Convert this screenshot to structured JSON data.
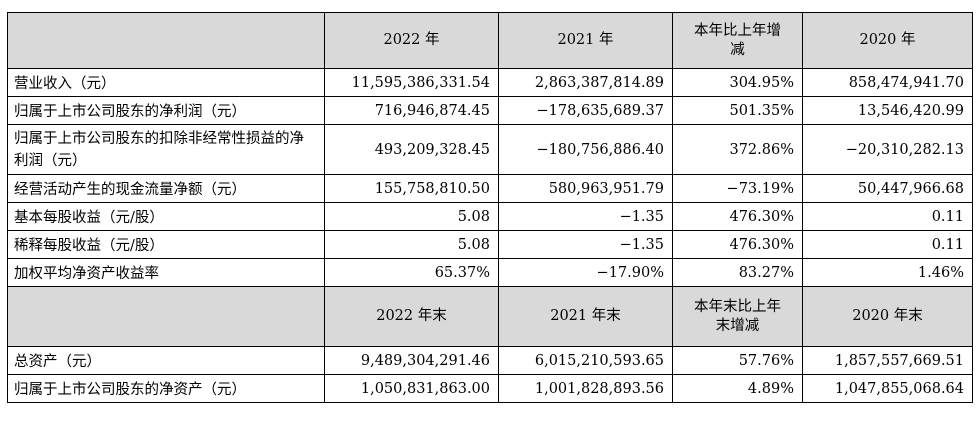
{
  "header1": {
    "blank": "",
    "col1": "2022 年",
    "col2": "2021 年",
    "col3": "本年比上年增减",
    "col4": "2020 年"
  },
  "rows1": [
    {
      "label": "营业收入（元）",
      "v2022": "11,595,386,331.54",
      "v2021": "2,863,387,814.89",
      "change": "304.95%",
      "v2020": "858,474,941.70"
    },
    {
      "label": "归属于上市公司股东的净利润（元）",
      "v2022": "716,946,874.45",
      "v2021": "−178,635,689.37",
      "change": "501.35%",
      "v2020": "13,546,420.99"
    },
    {
      "label": "归属于上市公司股东的扣除非经常性损益的净利润（元）",
      "v2022": "493,209,328.45",
      "v2021": "−180,756,886.40",
      "change": "372.86%",
      "v2020": "−20,310,282.13"
    },
    {
      "label": "经营活动产生的现金流量净额（元）",
      "v2022": "155,758,810.50",
      "v2021": "580,963,951.79",
      "change": "−73.19%",
      "v2020": "50,447,966.68"
    },
    {
      "label": "基本每股收益（元/股）",
      "v2022": "5.08",
      "v2021": "−1.35",
      "change": "476.30%",
      "v2020": "0.11"
    },
    {
      "label": "稀释每股收益（元/股）",
      "v2022": "5.08",
      "v2021": "−1.35",
      "change": "476.30%",
      "v2020": "0.11"
    },
    {
      "label": "加权平均净资产收益率",
      "v2022": "65.37%",
      "v2021": "−17.90%",
      "change": "83.27%",
      "v2020": "1.46%"
    }
  ],
  "header2": {
    "blank": "",
    "col1": "2022 年末",
    "col2": "2021 年末",
    "col3": "本年末比上年末增减",
    "col4": "2020 年末"
  },
  "rows2": [
    {
      "label": "总资产（元）",
      "v2022": "9,489,304,291.46",
      "v2021": "6,015,210,593.65",
      "change": "57.76%",
      "v2020": "1,857,557,669.51"
    },
    {
      "label": "归属于上市公司股东的净资产（元）",
      "v2022": "1,050,831,863.00",
      "v2021": "1,001,828,893.56",
      "change": "4.89%",
      "v2020": "1,047,855,068.64"
    }
  ]
}
